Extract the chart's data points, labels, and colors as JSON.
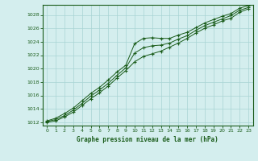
{
  "title": "Graphe pression niveau de la mer (hPa)",
  "background_color": "#d4eeee",
  "grid_color": "#a8d4d4",
  "line_color": "#1a5c1a",
  "marker_color": "#1a5c1a",
  "xlim": [
    -0.5,
    23.5
  ],
  "ylim": [
    1011.5,
    1029.5
  ],
  "xticks": [
    0,
    1,
    2,
    3,
    4,
    5,
    6,
    7,
    8,
    9,
    10,
    11,
    12,
    13,
    14,
    15,
    16,
    17,
    18,
    19,
    20,
    21,
    22,
    23
  ],
  "yticks": [
    1012,
    1014,
    1016,
    1018,
    1020,
    1022,
    1024,
    1026,
    1028
  ],
  "series1_x": [
    0,
    1,
    2,
    3,
    4,
    5,
    6,
    7,
    8,
    9,
    10,
    11,
    12,
    13,
    14,
    15,
    16,
    17,
    18,
    19,
    20,
    21,
    22,
    23
  ],
  "series1": [
    1012.2,
    1012.6,
    1013.3,
    1014.1,
    1015.2,
    1016.3,
    1017.2,
    1018.3,
    1019.5,
    1020.5,
    1023.7,
    1024.5,
    1024.6,
    1024.5,
    1024.5,
    1025.0,
    1025.4,
    1026.1,
    1026.8,
    1027.3,
    1027.8,
    1028.2,
    1029.0,
    1029.4
  ],
  "series2_x": [
    0,
    1,
    2,
    3,
    4,
    5,
    6,
    7,
    8,
    9,
    10,
    11,
    12,
    13,
    14,
    15,
    16,
    17,
    18,
    19,
    20,
    21,
    22,
    23
  ],
  "series2": [
    1012.0,
    1012.2,
    1012.8,
    1013.5,
    1014.5,
    1015.5,
    1016.4,
    1017.4,
    1018.6,
    1019.7,
    1021.0,
    1021.8,
    1022.2,
    1022.6,
    1023.2,
    1023.8,
    1024.5,
    1025.3,
    1026.0,
    1026.5,
    1027.1,
    1027.5,
    1028.4,
    1028.9
  ],
  "series3_x": [
    0,
    1,
    2,
    3,
    4,
    5,
    6,
    7,
    8,
    9,
    10,
    11,
    12,
    13,
    14,
    15,
    16,
    17,
    18,
    19,
    20,
    21,
    22,
    23
  ],
  "series3": [
    1012.1,
    1012.4,
    1013.0,
    1013.8,
    1014.8,
    1015.9,
    1016.8,
    1017.8,
    1019.0,
    1020.1,
    1022.3,
    1023.1,
    1023.4,
    1023.5,
    1023.8,
    1024.4,
    1024.9,
    1025.7,
    1026.4,
    1026.9,
    1027.4,
    1027.9,
    1028.7,
    1029.1
  ]
}
